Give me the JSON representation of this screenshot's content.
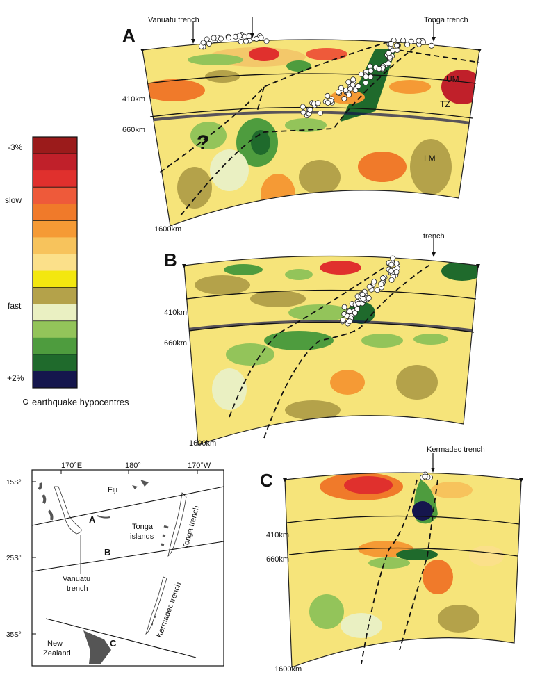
{
  "panels": [
    {
      "letter": "A",
      "trench_labels": [
        "Vanuatu trench",
        "Tonga trench"
      ],
      "depths": [
        "410km",
        "660km",
        "1600km"
      ],
      "zones": [
        "UM",
        "TZ",
        "LM"
      ],
      "question": "?"
    },
    {
      "letter": "B",
      "trench_labels": [
        "trench"
      ],
      "depths": [
        "410km",
        "660km",
        "1600km"
      ]
    },
    {
      "letter": "C",
      "trench_labels": [
        "Kermadec trench"
      ],
      "depths": [
        "410km",
        "660km",
        "1600km"
      ]
    }
  ],
  "legend": {
    "labels": [
      "-3%",
      "slow",
      "fast",
      "+2%"
    ],
    "hypocentre_label": "earthquake hypocentres",
    "colors": [
      "#9b1b1b",
      "#c0202a",
      "#e0302d",
      "#ee5a3a",
      "#f07a2a",
      "#f59a35",
      "#f7c35c",
      "#fbe08a",
      "#f3e70f",
      "#b4a24a",
      "#eaf0c2",
      "#93c45a",
      "#4e9c3e",
      "#1f6a2c",
      "#15164d"
    ]
  },
  "map": {
    "lon_labels": [
      "170°E",
      "180°",
      "170°W"
    ],
    "lat_labels": [
      "15S°",
      "25S°",
      "35S°"
    ],
    "places": [
      "Fiji",
      "Tonga islands",
      "Tonga trench",
      "Vanuatu trench",
      "Kermadec trench",
      "New Zealand"
    ],
    "line_labels": [
      "A",
      "B",
      "C"
    ]
  }
}
